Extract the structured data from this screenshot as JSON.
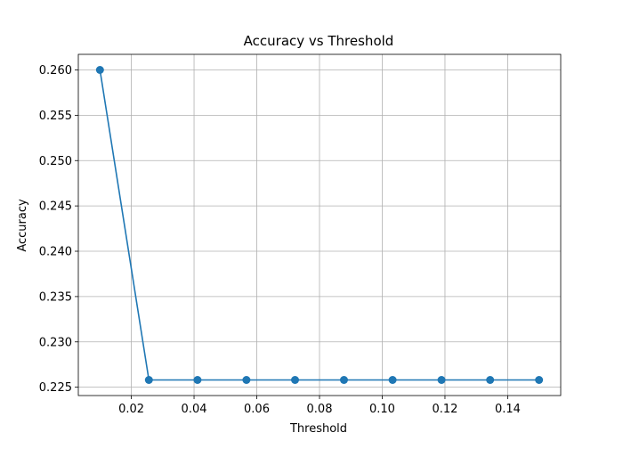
{
  "chart_data": {
    "type": "line",
    "title": "Accuracy vs Threshold",
    "xlabel": "Threshold",
    "ylabel": "Accuracy",
    "xlim": [
      0.0031,
      0.1569
    ],
    "ylim": [
      0.22408,
      0.26172
    ],
    "grid": true,
    "legend": false,
    "x_ticks": [
      0.02,
      0.04,
      0.06,
      0.08,
      0.1,
      0.12,
      0.14
    ],
    "x_tick_labels": [
      "0.02",
      "0.04",
      "0.06",
      "0.08",
      "0.10",
      "0.12",
      "0.14"
    ],
    "y_ticks": [
      0.225,
      0.23,
      0.235,
      0.24,
      0.245,
      0.25,
      0.255,
      0.26
    ],
    "y_tick_labels": [
      "0.225",
      "0.230",
      "0.235",
      "0.240",
      "0.245",
      "0.250",
      "0.255",
      "0.260"
    ],
    "series": [
      {
        "color": "#1f77b4",
        "marker": "circle",
        "x": [
          0.01,
          0.0256,
          0.0411,
          0.0567,
          0.0722,
          0.0878,
          0.1033,
          0.1189,
          0.1344,
          0.15
        ],
        "y": [
          0.26,
          0.2258,
          0.2258,
          0.2258,
          0.2258,
          0.2258,
          0.2258,
          0.2258,
          0.2258,
          0.2258
        ]
      }
    ]
  }
}
